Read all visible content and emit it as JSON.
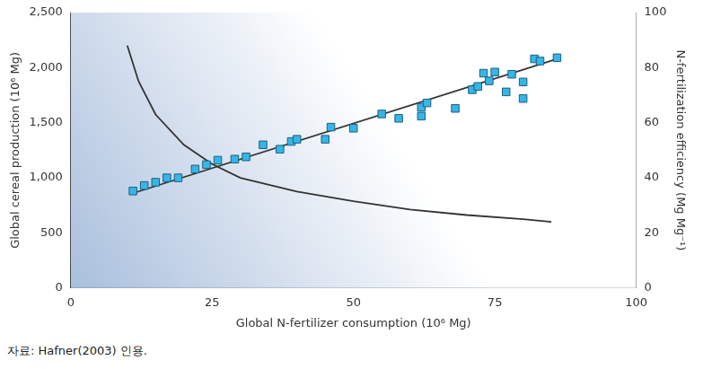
{
  "chart_data": {
    "type": "scatter",
    "x_label": "Global N-fertilizer consumption (10⁶ Mg)",
    "y_label": "Global cereal production (10⁶ Mg)",
    "y2_label": "N-fertilization efficiency (Mg Mg⁻¹)",
    "caption": "자료: Hafner(2003) 인용.",
    "xlim": [
      0,
      100
    ],
    "xticks": [
      0,
      25,
      50,
      75,
      100
    ],
    "ylim": [
      0,
      2500
    ],
    "yticks": [
      0,
      500,
      {
        "value": 1000,
        "label": "1,000"
      },
      {
        "value": 1500,
        "label": "1,500"
      },
      {
        "value": 2000,
        "label": "2,000"
      },
      {
        "value": 2500,
        "label": "2,500"
      }
    ],
    "y2lim": [
      0,
      100
    ],
    "y2ticks": [
      0,
      20,
      40,
      60,
      80,
      100
    ],
    "grid": false,
    "series": [
      {
        "type": "scatter",
        "color": "#36b6e6",
        "marker": "square",
        "x": [
          11,
          13,
          15,
          17,
          19,
          22,
          24,
          26,
          29,
          31,
          34,
          37,
          39,
          40,
          45,
          46,
          50,
          55,
          58,
          62,
          62,
          63,
          68,
          71,
          72,
          73,
          74,
          75,
          77,
          78,
          80,
          80,
          82,
          83,
          86
        ],
        "values": [
          880,
          930,
          960,
          1000,
          1000,
          1080,
          1120,
          1160,
          1170,
          1190,
          1300,
          1260,
          1330,
          1350,
          1350,
          1460,
          1450,
          1580,
          1540,
          1560,
          1640,
          1680,
          1630,
          1800,
          1830,
          1950,
          1880,
          1960,
          1780,
          1940,
          1870,
          1720,
          2080,
          2060,
          2090
        ]
      },
      {
        "type": "line",
        "color": "#333333",
        "marker": "none",
        "line_style": "solid",
        "x": [
          11,
          86
        ],
        "values": [
          860,
          2080
        ]
      },
      {
        "type": "line",
        "color": "#333333",
        "marker": "none",
        "line_style": "solid",
        "axis": "y2",
        "x": [
          10,
          12,
          15,
          20,
          25,
          30,
          40,
          50,
          60,
          70,
          80,
          85
        ],
        "values": [
          88,
          75,
          63,
          52,
          45,
          40,
          35,
          31.5,
          28.5,
          26.5,
          25,
          24
        ]
      }
    ]
  }
}
